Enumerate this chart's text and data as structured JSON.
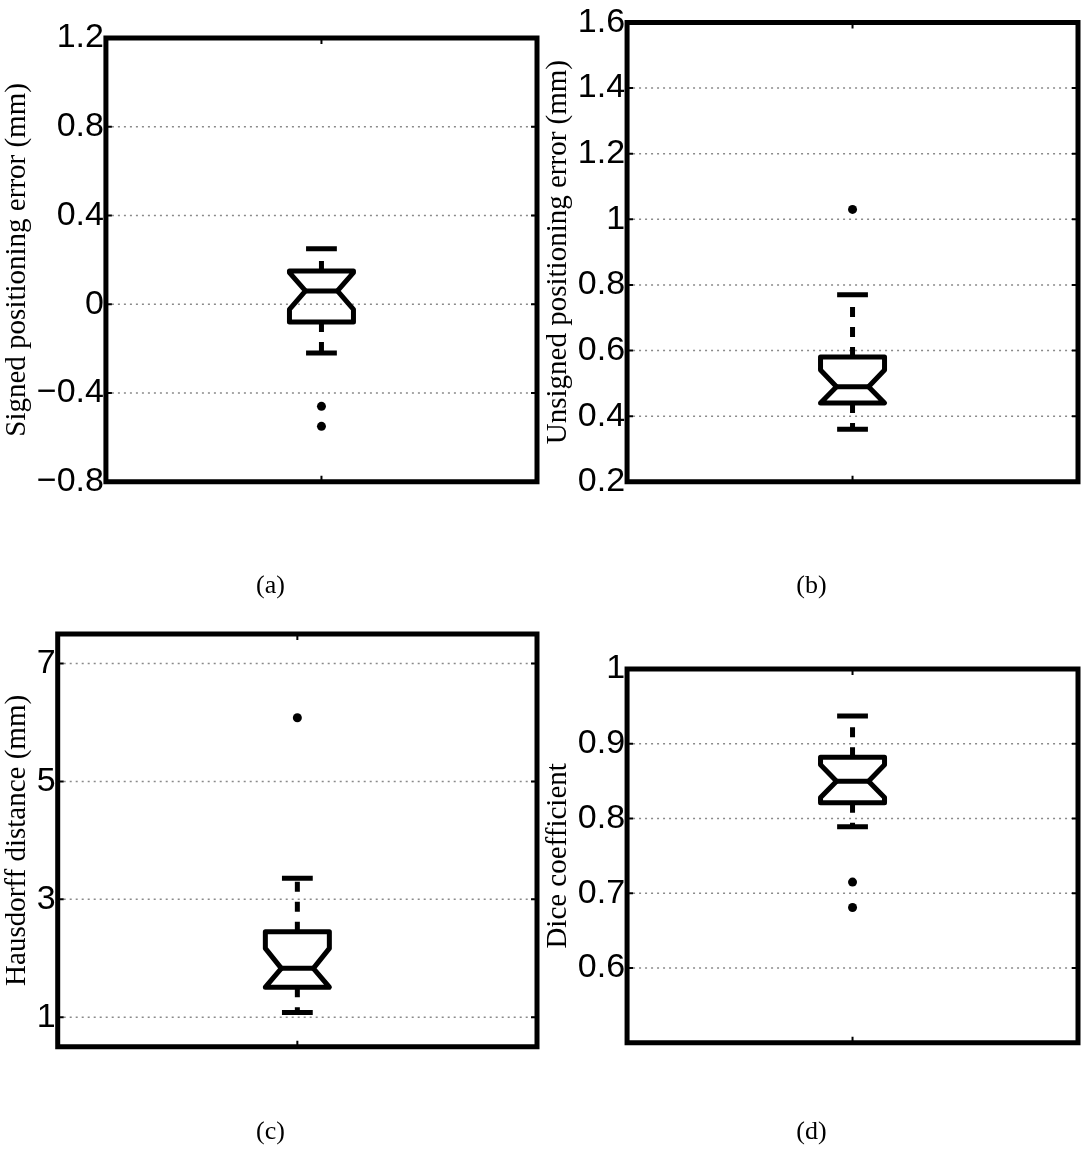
{
  "chart_data": [
    {
      "type": "box",
      "ylabel": "Signed positioning error (mm)",
      "categories": [
        null
      ],
      "color": "#000000",
      "grid": "y",
      "ylim": [
        -0.8,
        1.2
      ],
      "yticks": [
        {
          "value": -0.8,
          "label": "−0.8"
        },
        {
          "value": -0.4,
          "label": "−0.4"
        },
        0,
        0.4,
        0.8,
        1.2
      ],
      "boxes": [
        {
          "low": -0.22,
          "q1": -0.08,
          "median": 0.06,
          "q3": 0.15,
          "high": 0.25,
          "outliers": [
            -0.46,
            -0.55
          ]
        }
      ],
      "annotations": [
        "(a)"
      ]
    },
    {
      "type": "box",
      "ylabel": "Unsigned positioning error (mm)",
      "categories": [
        null
      ],
      "color": "#000000",
      "grid": "y",
      "ylim": [
        0.2,
        1.6
      ],
      "yticks": [
        0.2,
        0.4,
        0.6,
        0.8,
        1,
        1.2,
        1.4,
        1.6
      ],
      "boxes": [
        {
          "low": 0.36,
          "q1": 0.44,
          "median": 0.49,
          "q3": 0.58,
          "high": 0.77,
          "outliers": [
            1.03
          ]
        }
      ],
      "annotations": [
        "(b)"
      ]
    },
    {
      "type": "box",
      "ylabel": "Hausdorff distance (mm)",
      "categories": [
        null
      ],
      "color": "#000000",
      "grid": "y",
      "ylim": [
        0.5,
        7.5
      ],
      "yticks": [
        1,
        3,
        5,
        7
      ],
      "boxes": [
        {
          "low": 1.08,
          "q1": 1.51,
          "median": 1.83,
          "q3": 2.45,
          "high": 3.36,
          "outliers": [
            6.08
          ]
        }
      ],
      "annotations": [
        "(c)"
      ]
    },
    {
      "type": "box",
      "ylabel": "Dice coefficient",
      "categories": [
        null
      ],
      "color": "#000000",
      "grid": "y",
      "ylim": [
        0.5,
        1
      ],
      "yticks": [
        0.6,
        0.7,
        0.8,
        0.9,
        1
      ],
      "boxes": [
        {
          "low": 0.789,
          "q1": 0.821,
          "median": 0.85,
          "q3": 0.882,
          "high": 0.937,
          "outliers": [
            0.715,
            0.681
          ]
        }
      ],
      "annotations": [
        "(d)"
      ]
    }
  ]
}
